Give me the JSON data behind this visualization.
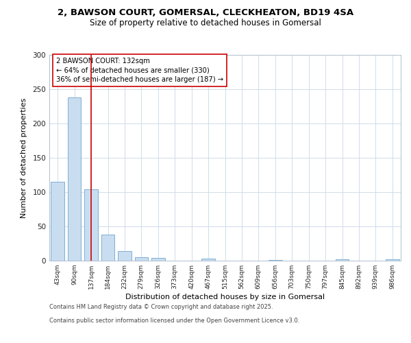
{
  "title_line1": "2, BAWSON COURT, GOMERSAL, CLECKHEATON, BD19 4SA",
  "title_line2": "Size of property relative to detached houses in Gomersal",
  "xlabel": "Distribution of detached houses by size in Gomersal",
  "ylabel": "Number of detached properties",
  "categories": [
    "43sqm",
    "90sqm",
    "137sqm",
    "184sqm",
    "232sqm",
    "279sqm",
    "326sqm",
    "373sqm",
    "420sqm",
    "467sqm",
    "515sqm",
    "562sqm",
    "609sqm",
    "656sqm",
    "703sqm",
    "750sqm",
    "797sqm",
    "845sqm",
    "892sqm",
    "939sqm",
    "986sqm"
  ],
  "values": [
    115,
    238,
    104,
    38,
    14,
    5,
    4,
    0,
    0,
    3,
    0,
    0,
    0,
    1,
    0,
    0,
    0,
    2,
    0,
    0,
    2
  ],
  "bar_color": "#c9ddf0",
  "bar_edge_color": "#7bafd4",
  "vline_x": 2,
  "vline_color": "#cc0000",
  "annotation_text": "2 BAWSON COURT: 132sqm\n← 64% of detached houses are smaller (330)\n36% of semi-detached houses are larger (187) →",
  "annotation_box_color": "#ffffff",
  "annotation_box_edge_color": "#cc0000",
  "ylim": [
    0,
    300
  ],
  "yticks": [
    0,
    50,
    100,
    150,
    200,
    250,
    300
  ],
  "footer_line1": "Contains HM Land Registry data © Crown copyright and database right 2025.",
  "footer_line2": "Contains public sector information licensed under the Open Government Licence v3.0.",
  "bg_color": "#ffffff",
  "plot_bg_color": "#ffffff",
  "grid_color": "#d0dce8"
}
